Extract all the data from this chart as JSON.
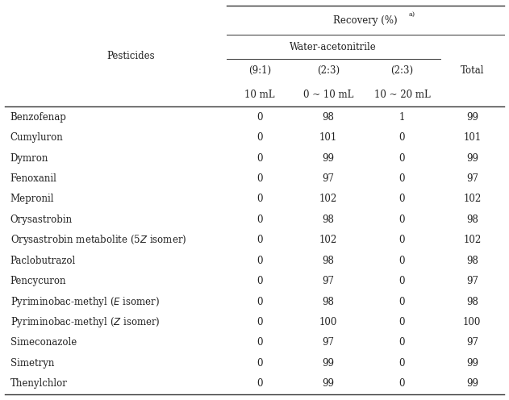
{
  "pesticides": [
    "Benzofenap",
    "Cumyluron",
    "Dymron",
    "Fenoxanil",
    "Mepronil",
    "Orysastrobin",
    "Orysastrobin metabolite (5Z isomer)",
    "Paclobutrazol",
    "Pencycuron",
    "Pyriminobac-methyl (E isomer)",
    "Pyriminobac-methyl (Z isomer)",
    "Simeconazole",
    "Simetryn",
    "Thenylchlor"
  ],
  "data": [
    [
      0,
      98,
      1,
      99
    ],
    [
      0,
      101,
      0,
      101
    ],
    [
      0,
      99,
      0,
      99
    ],
    [
      0,
      97,
      0,
      97
    ],
    [
      0,
      102,
      0,
      102
    ],
    [
      0,
      98,
      0,
      98
    ],
    [
      0,
      102,
      0,
      102
    ],
    [
      0,
      98,
      0,
      98
    ],
    [
      0,
      97,
      0,
      97
    ],
    [
      0,
      98,
      0,
      98
    ],
    [
      0,
      100,
      0,
      100
    ],
    [
      0,
      97,
      0,
      97
    ],
    [
      0,
      99,
      0,
      99
    ],
    [
      0,
      99,
      0,
      99
    ]
  ],
  "bg_color": "#ffffff",
  "text_color": "#222222",
  "font_family": "DejaVu Serif",
  "font_size": 8.5,
  "col_ratios": [
    "(9:1)",
    "(2:3)",
    "(2:3)",
    "Total"
  ],
  "col_vols": [
    "10 mL",
    "0 ~ 10 mL",
    "10 ~ 20 mL",
    ""
  ],
  "recovery_label": "Recovery (%)",
  "recovery_super": "a)",
  "water_label": "Water-acetonitrile",
  "pesticides_label": "Pesticides"
}
